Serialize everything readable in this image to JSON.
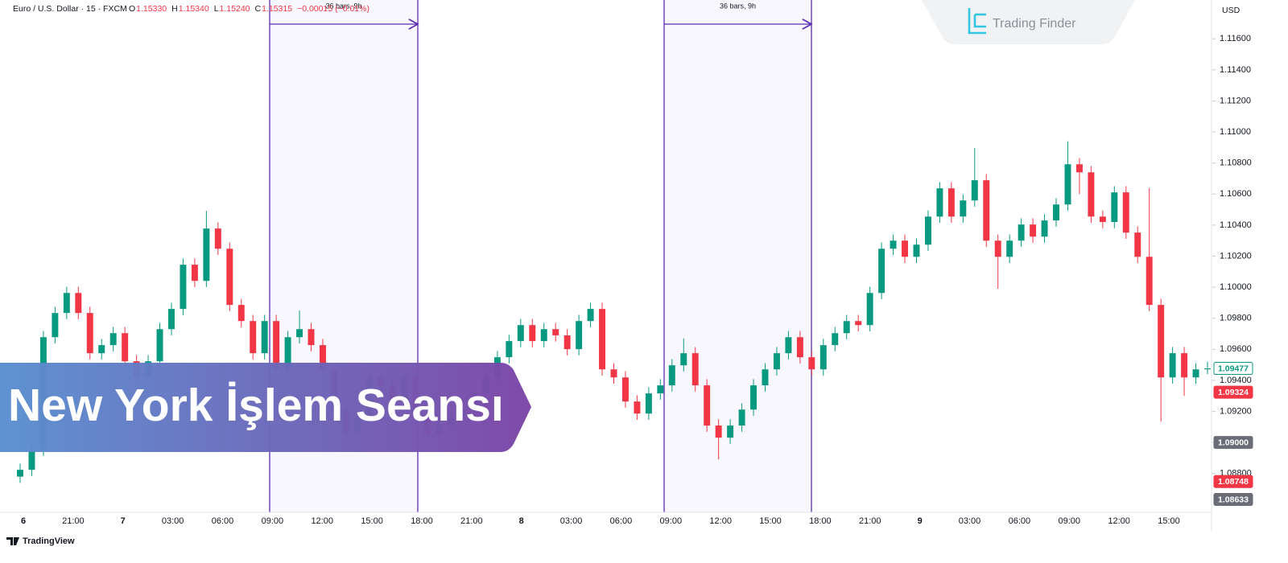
{
  "chart_data": {
    "type": "candlestick",
    "symbol": "Euro / U.S. Dollar · 15 · FXCM",
    "ohlc_header": [
      {
        "key": "O",
        "value": "1.15330"
      },
      {
        "key": "H",
        "value": "1.15340"
      },
      {
        "key": "L",
        "value": "1.15240"
      },
      {
        "key": "C",
        "value": "1.15315"
      }
    ],
    "change": "−0.00015 (−0.01%)",
    "currency": "USD",
    "up_color": "#089981",
    "down_color": "#f23645",
    "ylim": [
      1.0855,
      1.1185
    ],
    "yticks": [
      {
        "value": 1.088,
        "label": "1.08800"
      },
      {
        "value": 1.09,
        "label": "1.09000"
      },
      {
        "value": 1.092,
        "label": "1.09200"
      },
      {
        "value": 1.094,
        "label": "1.09400"
      },
      {
        "value": 1.096,
        "label": "1.09600"
      },
      {
        "value": 1.098,
        "label": "1.09800"
      },
      {
        "value": 1.1,
        "label": "1.10000"
      },
      {
        "value": 1.102,
        "label": "1.10200"
      },
      {
        "value": 1.104,
        "label": "1.10400"
      },
      {
        "value": 1.106,
        "label": "1.10600"
      },
      {
        "value": 1.108,
        "label": "1.10800"
      },
      {
        "value": 1.11,
        "label": "1.11000"
      },
      {
        "value": 1.112,
        "label": "1.11200"
      },
      {
        "value": 1.114,
        "label": "1.11400"
      },
      {
        "value": 1.116,
        "label": "1.11600"
      }
    ],
    "xlabels": [
      "6",
      "21:00",
      "7",
      "03:00",
      "06:00",
      "09:00",
      "12:00",
      "15:00",
      "18:00",
      "21:00",
      "8",
      "03:00",
      "06:00",
      "09:00",
      "12:00",
      "15:00",
      "18:00",
      "21:00",
      "9",
      "03:00",
      "06:00",
      "09:00",
      "12:00",
      "15:00"
    ],
    "price_tags": [
      {
        "value": 1.09477,
        "label": "1.09477",
        "style": "outline"
      },
      {
        "value": 1.09324,
        "label": "1.09324",
        "style": "red"
      },
      {
        "value": 1.09,
        "label": "1.09000",
        "style": "gray"
      },
      {
        "value": 1.08748,
        "label": "1.08748",
        "style": "red"
      },
      {
        "value": 1.08633,
        "label": "1.08633",
        "style": "gray"
      }
    ],
    "sessions": [
      {
        "label": "36 bars, 9h"
      },
      {
        "label": "36 bars, 9h"
      }
    ],
    "open": [
      1.0878,
      1.08824,
      1.08953,
      1.09678,
      1.09834,
      1.09963,
      1.09834,
      1.09575,
      1.09627,
      1.09704,
      1.09523,
      1.09419,
      1.09523,
      1.0973,
      1.0986,
      1.10145,
      1.10041,
      1.10378,
      1.10248,
      1.09886,
      1.09782,
      1.09575,
      1.09782,
      1.09471,
      1.09678,
      1.0973,
      1.09627,
      1.09471,
      1.09212,
      1.09057,
      1.0916,
      1.09419,
      1.09368,
      1.09264,
      1.09419,
      1.0916,
      1.09057,
      1.09109,
      1.0916,
      1.09212,
      1.09316,
      1.09419,
      1.09549,
      1.09653,
      1.09756,
      1.09653,
      1.0973,
      1.0969,
      1.09601,
      1.09782,
      1.0986,
      1.09471,
      1.09419,
      1.09264,
      1.09186,
      1.09316,
      1.09368,
      1.09497,
      1.09575,
      1.09368,
      1.09109,
      1.09031,
      1.09109,
      1.09212,
      1.09368,
      1.09471,
      1.09575,
      1.09678,
      1.09549,
      1.09471,
      1.09627,
      1.09704,
      1.09782,
      1.09756,
      1.09963,
      1.10248,
      1.103,
      1.10196,
      1.10274,
      1.10455,
      1.10637,
      1.10455,
      1.10559,
      1.10689,
      1.103,
      1.10196,
      1.103,
      1.10404,
      1.10326,
      1.1043,
      1.10533,
      1.10792,
      1.1074,
      1.10455,
      1.1042,
      1.10611,
      1.10352,
      1.10196,
      1.09886,
      1.09419,
      1.09575,
      1.09419,
      1.09471
    ],
    "high": [
      1.08864,
      1.08993,
      1.09718,
      1.09874,
      1.10003,
      1.10003,
      1.09874,
      1.09667,
      1.09744,
      1.09744,
      1.09563,
      1.09563,
      1.0977,
      1.099,
      1.10185,
      1.10185,
      1.10492,
      1.10418,
      1.10288,
      1.09926,
      1.09822,
      1.09822,
      1.09822,
      1.09718,
      1.0985,
      1.0977,
      1.09667,
      1.09511,
      1.09252,
      1.092,
      1.09459,
      1.09459,
      1.09408,
      1.09459,
      1.09459,
      1.092,
      1.09149,
      1.092,
      1.09252,
      1.09356,
      1.09459,
      1.09589,
      1.09693,
      1.09796,
      1.09796,
      1.0977,
      1.0977,
      1.0973,
      1.09822,
      1.099,
      1.099,
      1.09511,
      1.09459,
      1.09304,
      1.09356,
      1.09408,
      1.09537,
      1.0967,
      1.09615,
      1.09408,
      1.09149,
      1.09149,
      1.09252,
      1.09408,
      1.09511,
      1.09615,
      1.09718,
      1.09718,
      1.09589,
      1.09667,
      1.09744,
      1.09822,
      1.09822,
      1.10003,
      1.10288,
      1.1034,
      1.1034,
      1.10314,
      1.10495,
      1.10677,
      1.10677,
      1.10599,
      1.10896,
      1.10729,
      1.1034,
      1.1034,
      1.10444,
      1.10444,
      1.1047,
      1.10573,
      1.1094,
      1.10832,
      1.1078,
      1.10495,
      1.10651,
      1.10651,
      1.10392,
      1.1064,
      1.09926,
      1.09615,
      1.09615,
      1.09511,
      1.0952
    ],
    "low": [
      1.0874,
      1.08784,
      1.08913,
      1.09638,
      1.09794,
      1.09794,
      1.09535,
      1.09535,
      1.09587,
      1.09483,
      1.09379,
      1.09379,
      1.09483,
      1.0969,
      1.0982,
      1.10001,
      1.10001,
      1.10208,
      1.09846,
      1.09742,
      1.09535,
      1.09535,
      1.09431,
      1.09431,
      1.09638,
      1.09587,
      1.09431,
      1.09172,
      1.09017,
      1.09017,
      1.0912,
      1.09328,
      1.09224,
      1.09224,
      1.0912,
      1.09017,
      1.09017,
      1.09069,
      1.0912,
      1.09172,
      1.09276,
      1.09379,
      1.09509,
      1.09613,
      1.09613,
      1.09613,
      1.0965,
      1.09561,
      1.09561,
      1.09742,
      1.09431,
      1.09379,
      1.09224,
      1.09146,
      1.09146,
      1.09276,
      1.09328,
      1.09457,
      1.09328,
      1.09069,
      1.08891,
      1.08991,
      1.09069,
      1.09172,
      1.09328,
      1.09431,
      1.09535,
      1.09509,
      1.09431,
      1.09431,
      1.09587,
      1.09664,
      1.09716,
      1.09716,
      1.09923,
      1.10208,
      1.10156,
      1.10156,
      1.10234,
      1.10415,
      1.10415,
      1.10415,
      1.10519,
      1.1026,
      1.0999,
      1.10156,
      1.1026,
      1.10286,
      1.10286,
      1.1039,
      1.10493,
      1.106,
      1.10415,
      1.1038,
      1.1038,
      1.10312,
      1.10156,
      1.09846,
      1.09134,
      1.09379,
      1.093,
      1.09379,
      1.0944
    ],
    "close": [
      1.08824,
      1.08953,
      1.09678,
      1.09834,
      1.09963,
      1.09834,
      1.09575,
      1.09627,
      1.09704,
      1.09523,
      1.09419,
      1.09523,
      1.0973,
      1.0986,
      1.10145,
      1.10041,
      1.10378,
      1.10248,
      1.09886,
      1.09782,
      1.09575,
      1.09782,
      1.09471,
      1.09678,
      1.0973,
      1.09627,
      1.09471,
      1.09212,
      1.09057,
      1.0916,
      1.09419,
      1.09368,
      1.09264,
      1.09419,
      1.0916,
      1.09057,
      1.09109,
      1.0916,
      1.09212,
      1.09316,
      1.09419,
      1.09549,
      1.09653,
      1.09756,
      1.09653,
      1.0973,
      1.0969,
      1.09601,
      1.09782,
      1.0986,
      1.09471,
      1.09419,
      1.09264,
      1.09186,
      1.09316,
      1.09368,
      1.09497,
      1.09575,
      1.09368,
      1.09109,
      1.09031,
      1.09109,
      1.09212,
      1.09368,
      1.09471,
      1.09575,
      1.09678,
      1.09549,
      1.09471,
      1.09627,
      1.09704,
      1.09782,
      1.09756,
      1.09963,
      1.10248,
      1.103,
      1.10196,
      1.10274,
      1.10455,
      1.10637,
      1.10455,
      1.10559,
      1.10689,
      1.103,
      1.10196,
      1.103,
      1.10404,
      1.10326,
      1.1043,
      1.10533,
      1.10792,
      1.1074,
      1.10455,
      1.1042,
      1.10611,
      1.10352,
      1.10196,
      1.09886,
      1.09419,
      1.09575,
      1.09419,
      1.09471,
      1.09477
    ]
  },
  "banner": {
    "title": "New York İşlem Seansı"
  },
  "watermark": {
    "brand": "Trading Finder"
  },
  "footer": {
    "brand": "TradingView"
  }
}
